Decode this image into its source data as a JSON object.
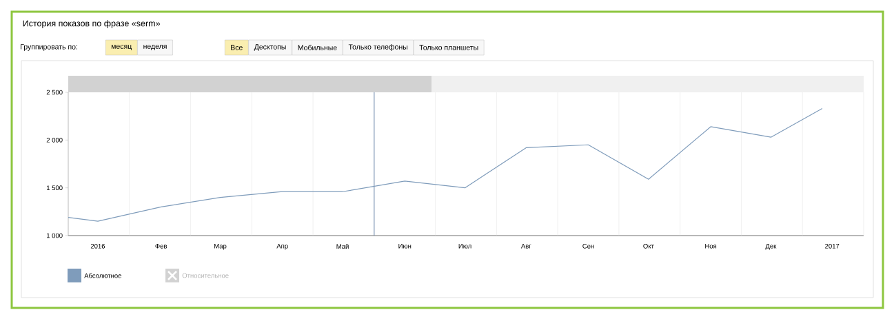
{
  "chart_data": {
    "type": "line",
    "title": "История показов по фразе «serm»",
    "x": [
      "2016-01-01",
      "2016-01-16",
      "2016-02-16",
      "2016-03-16",
      "2016-04-16",
      "2016-05-16",
      "2016-06-16",
      "2016-07-16",
      "2016-08-16",
      "2016-09-16",
      "2016-10-16",
      "2016-11-16",
      "2016-12-16",
      "2017-01-11"
    ],
    "series": [
      {
        "name": "Абсолютное",
        "color": "#7f9cbb",
        "values": [
          1190,
          1150,
          1300,
          1400,
          1460,
          1460,
          1570,
          1500,
          1920,
          1950,
          1590,
          2140,
          2030,
          2330
        ]
      }
    ],
    "xlim": [
      "2016-01-01",
      "2017-02-01"
    ],
    "xticks": [
      {
        "value": "2016-01-01",
        "label": null
      },
      {
        "value": "2016-01-16",
        "label": "2016"
      },
      {
        "value": "2016-02-01",
        "label": null
      },
      {
        "value": "2016-02-16",
        "label": "Фев"
      },
      {
        "value": "2016-03-01",
        "label": null
      },
      {
        "value": "2016-03-16",
        "label": "Мар"
      },
      {
        "value": "2016-04-01",
        "label": null
      },
      {
        "value": "2016-04-16",
        "label": "Апр"
      },
      {
        "value": "2016-05-01",
        "label": null
      },
      {
        "value": "2016-05-16",
        "label": "Май"
      },
      {
        "value": "2016-06-01",
        "label": null
      },
      {
        "value": "2016-06-16",
        "label": "Июн"
      },
      {
        "value": "2016-07-01",
        "label": null
      },
      {
        "value": "2016-07-16",
        "label": "Июл"
      },
      {
        "value": "2016-08-01",
        "label": null
      },
      {
        "value": "2016-08-16",
        "label": "Авг"
      },
      {
        "value": "2016-09-01",
        "label": null
      },
      {
        "value": "2016-09-16",
        "label": "Сен"
      },
      {
        "value": "2016-10-01",
        "label": null
      },
      {
        "value": "2016-10-16",
        "label": "Окт"
      },
      {
        "value": "2016-11-01",
        "label": null
      },
      {
        "value": "2016-11-16",
        "label": "Ноя"
      },
      {
        "value": "2016-12-01",
        "label": null
      },
      {
        "value": "2016-12-16",
        "label": "Дек"
      },
      {
        "value": "2017-01-01",
        "label": null
      },
      {
        "value": "2017-01-16",
        "label": "2017"
      },
      {
        "value": "2017-02-01",
        "label": null
      }
    ],
    "ylim": [
      1000,
      2500
    ],
    "yticks": [
      {
        "value": 1000,
        "label": "1 000"
      },
      {
        "value": 1500,
        "label": "1 500"
      },
      {
        "value": 2000,
        "label": "2 000"
      },
      {
        "value": 2500,
        "label": "2 500"
      }
    ],
    "grid": "x",
    "legend": "bottom left",
    "marker": "none",
    "line_style": "solid",
    "ref_lines": [
      {
        "axis": "x",
        "value": "2016-06-01",
        "color": "#4a6d9c"
      }
    ],
    "annotations": [
      "Группировать по:",
      "месяц",
      "неделя",
      "Все",
      "Десктопы",
      "Мобильные",
      "Только телефоны",
      "Только планшеты",
      "Относительное"
    ]
  }
}
